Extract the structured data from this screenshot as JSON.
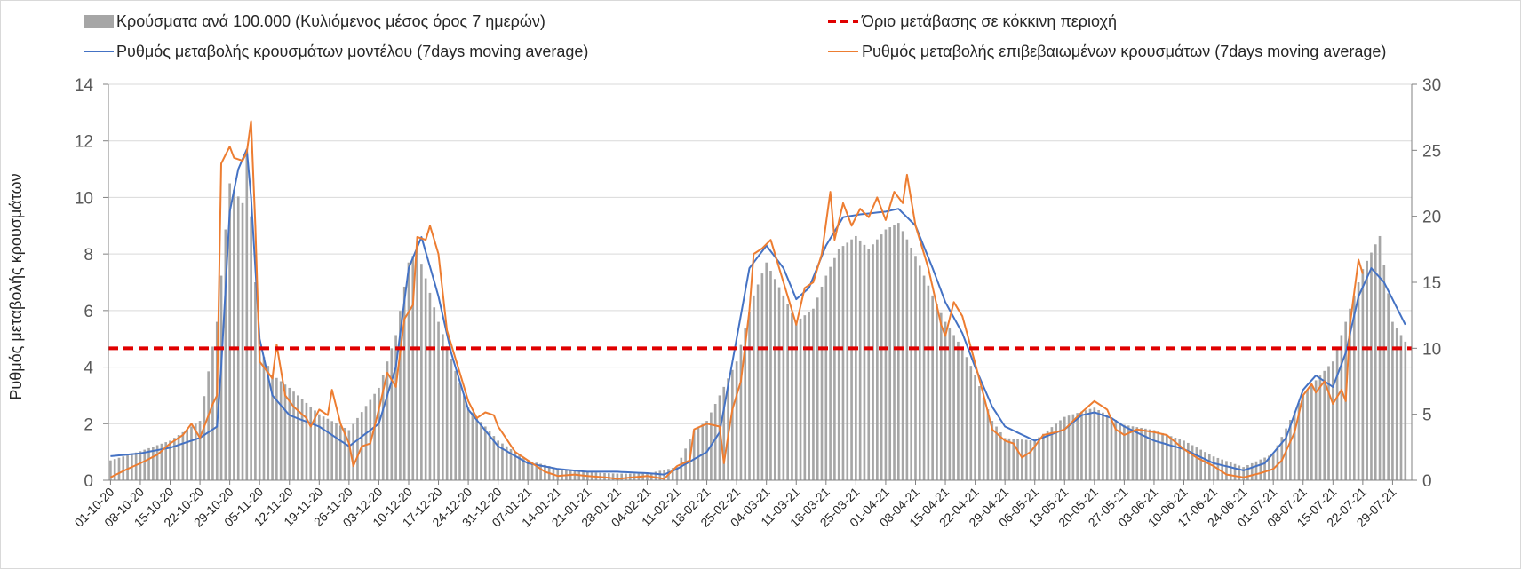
{
  "chart_data": {
    "type": "bar",
    "ylabel": "Ρυθμός μεταβολής κρουσμάτων",
    "ylim_left": [
      0,
      14
    ],
    "yticks_left": [
      "0",
      "2",
      "4",
      "6",
      "8",
      "10",
      "12",
      "14"
    ],
    "ylim_right": [
      0,
      30
    ],
    "yticks_right": [
      "0",
      "5",
      "10",
      "15",
      "20",
      "25",
      "30"
    ],
    "grid": true,
    "legend_position": "top",
    "x_start": "01-10-20",
    "num_days": 306,
    "xtick_labels": [
      "01-10-20",
      "08-10-20",
      "15-10-20",
      "22-10-20",
      "29-10-20",
      "05-11-20",
      "12-11-20",
      "19-11-20",
      "26-11-20",
      "03-12-20",
      "10-12-20",
      "17-12-20",
      "24-12-20",
      "31-12-20",
      "07-01-21",
      "14-01-21",
      "21-01-21",
      "28-01-21",
      "04-02-21",
      "11-02-21",
      "18-02-21",
      "25-02-21",
      "04-03-21",
      "11-03-21",
      "18-03-21",
      "25-03-21",
      "01-04-21",
      "08-04-21",
      "15-04-21",
      "22-04-21",
      "29-04-21",
      "06-05-21",
      "13-05-21",
      "20-05-21",
      "27-05-21",
      "03-06-21",
      "10-06-21",
      "17-06-21",
      "24-06-21",
      "01-07-21",
      "08-07-21",
      "15-07-21",
      "22-07-21",
      "29-07-21"
    ],
    "threshold": {
      "name": "Όριο μετάβασης σε κόκκινη περιοχή",
      "value": 10,
      "axis": "right",
      "color": "#e00000"
    },
    "series": [
      {
        "name": "Κρούσματα ανά 100.000 (Κυλιόμενος μέσος όρος 7 ημερών)",
        "kind": "bar",
        "axis": "right",
        "color": "#a6a6a6",
        "points": [
          [
            "01-10-20",
            1.5
          ],
          [
            "08-10-20",
            2.2
          ],
          [
            "15-10-20",
            3
          ],
          [
            "22-10-20",
            4.5
          ],
          [
            "26-10-20",
            12
          ],
          [
            "29-10-20",
            22.5
          ],
          [
            "01-11-20",
            21
          ],
          [
            "02-11-20",
            25
          ],
          [
            "05-11-20",
            10
          ],
          [
            "08-11-20",
            8
          ],
          [
            "12-11-20",
            7
          ],
          [
            "19-11-20",
            5
          ],
          [
            "26-11-20",
            3.8
          ],
          [
            "03-12-20",
            7
          ],
          [
            "07-12-20",
            11
          ],
          [
            "10-12-20",
            16.5
          ],
          [
            "12-12-20",
            17.5
          ],
          [
            "17-12-20",
            12
          ],
          [
            "24-12-20",
            5.5
          ],
          [
            "31-12-20",
            3
          ],
          [
            "07-01-21",
            1.5
          ],
          [
            "14-01-21",
            0.9
          ],
          [
            "21-01-21",
            0.6
          ],
          [
            "28-01-21",
            0.5
          ],
          [
            "04-02-21",
            0.5
          ],
          [
            "11-02-21",
            1
          ],
          [
            "15-02-21",
            3.8
          ],
          [
            "18-02-21",
            4.5
          ],
          [
            "25-02-21",
            9
          ],
          [
            "01-03-21",
            14
          ],
          [
            "04-03-21",
            16.5
          ],
          [
            "08-03-21",
            14
          ],
          [
            "11-03-21",
            12
          ],
          [
            "15-03-21",
            13
          ],
          [
            "18-03-21",
            15.5
          ],
          [
            "21-03-21",
            17.5
          ],
          [
            "25-03-21",
            18.5
          ],
          [
            "28-03-21",
            17.5
          ],
          [
            "01-04-21",
            19
          ],
          [
            "04-04-21",
            19.5
          ],
          [
            "08-04-21",
            17
          ],
          [
            "12-04-21",
            14
          ],
          [
            "15-04-21",
            12
          ],
          [
            "19-04-21",
            10
          ],
          [
            "22-04-21",
            8
          ],
          [
            "26-04-21",
            4.5
          ],
          [
            "29-04-21",
            3.2
          ],
          [
            "06-05-21",
            3
          ],
          [
            "13-05-21",
            4.8
          ],
          [
            "20-05-21",
            5.5
          ],
          [
            "27-05-21",
            4.2
          ],
          [
            "03-06-21",
            3.8
          ],
          [
            "10-06-21",
            3
          ],
          [
            "17-06-21",
            1.8
          ],
          [
            "24-06-21",
            1
          ],
          [
            "01-07-21",
            2
          ],
          [
            "08-07-21",
            6.5
          ],
          [
            "15-07-21",
            9
          ],
          [
            "22-07-21",
            16
          ],
          [
            "26-07-21",
            18.5
          ],
          [
            "29-07-21",
            12
          ],
          [
            "01-08-21",
            10.5
          ]
        ]
      },
      {
        "name": "Ρυθμός μεταβολής κρουσμάτων μοντέλου (7days moving average)",
        "kind": "line",
        "axis": "left",
        "color": "#4472c4",
        "points": [
          [
            "01-10-20",
            0.85
          ],
          [
            "08-10-20",
            0.95
          ],
          [
            "15-10-20",
            1.15
          ],
          [
            "22-10-20",
            1.5
          ],
          [
            "26-10-20",
            1.9
          ],
          [
            "27-10-20",
            4
          ],
          [
            "29-10-20",
            9.5
          ],
          [
            "31-10-20",
            11
          ],
          [
            "02-11-20",
            11.7
          ],
          [
            "03-11-20",
            10
          ],
          [
            "05-11-20",
            5
          ],
          [
            "08-11-20",
            3
          ],
          [
            "12-11-20",
            2.3
          ],
          [
            "19-11-20",
            1.9
          ],
          [
            "26-11-20",
            1.2
          ],
          [
            "03-12-20",
            2
          ],
          [
            "07-12-20",
            4
          ],
          [
            "10-12-20",
            7.5
          ],
          [
            "13-12-20",
            8.6
          ],
          [
            "17-12-20",
            6.5
          ],
          [
            "20-12-20",
            4.5
          ],
          [
            "24-12-20",
            2.5
          ],
          [
            "31-12-20",
            1.2
          ],
          [
            "07-01-21",
            0.6
          ],
          [
            "14-01-21",
            0.4
          ],
          [
            "21-01-21",
            0.3
          ],
          [
            "28-01-21",
            0.3
          ],
          [
            "04-02-21",
            0.25
          ],
          [
            "08-02-21",
            0.2
          ],
          [
            "11-02-21",
            0.4
          ],
          [
            "18-02-21",
            1
          ],
          [
            "21-02-21",
            1.7
          ],
          [
            "25-02-21",
            5
          ],
          [
            "28-02-21",
            7.5
          ],
          [
            "04-03-21",
            8.3
          ],
          [
            "08-03-21",
            7.5
          ],
          [
            "11-03-21",
            6.4
          ],
          [
            "14-03-21",
            6.8
          ],
          [
            "18-03-21",
            8.3
          ],
          [
            "22-03-21",
            9.3
          ],
          [
            "26-03-21",
            9.4
          ],
          [
            "01-04-21",
            9.5
          ],
          [
            "04-04-21",
            9.6
          ],
          [
            "08-04-21",
            9
          ],
          [
            "12-04-21",
            7.5
          ],
          [
            "15-04-21",
            6.3
          ],
          [
            "19-04-21",
            5.2
          ],
          [
            "22-04-21",
            4
          ],
          [
            "26-04-21",
            2.6
          ],
          [
            "29-04-21",
            1.9
          ],
          [
            "06-05-21",
            1.4
          ],
          [
            "13-05-21",
            1.8
          ],
          [
            "17-05-21",
            2.3
          ],
          [
            "20-05-21",
            2.4
          ],
          [
            "24-05-21",
            2.2
          ],
          [
            "27-05-21",
            1.9
          ],
          [
            "03-06-21",
            1.4
          ],
          [
            "10-06-21",
            1.1
          ],
          [
            "17-06-21",
            0.6
          ],
          [
            "24-06-21",
            0.35
          ],
          [
            "29-06-21",
            0.6
          ],
          [
            "04-07-21",
            1.5
          ],
          [
            "08-07-21",
            3.2
          ],
          [
            "11-07-21",
            3.7
          ],
          [
            "15-07-21",
            3.3
          ],
          [
            "18-07-21",
            4.5
          ],
          [
            "21-07-21",
            6.5
          ],
          [
            "24-07-21",
            7.5
          ],
          [
            "27-07-21",
            7
          ],
          [
            "01-08-21",
            5.5
          ]
        ]
      },
      {
        "name": "Ρυθμός μεταβολής επιβεβαιωμένων κρουσμάτων (7days moving average)",
        "kind": "line",
        "axis": "left",
        "color": "#ed7d31",
        "points": [
          [
            "01-10-20",
            0.1
          ],
          [
            "05-10-20",
            0.4
          ],
          [
            "08-10-20",
            0.6
          ],
          [
            "12-10-20",
            0.9
          ],
          [
            "15-10-20",
            1.3
          ],
          [
            "18-10-20",
            1.6
          ],
          [
            "20-10-20",
            2
          ],
          [
            "22-10-20",
            1.5
          ],
          [
            "25-10-20",
            2.7
          ],
          [
            "26-10-20",
            3
          ],
          [
            "27-10-20",
            11.2
          ],
          [
            "29-10-20",
            11.8
          ],
          [
            "30-10-20",
            11.4
          ],
          [
            "01-11-20",
            11.3
          ],
          [
            "02-11-20",
            11.6
          ],
          [
            "03-11-20",
            12.7
          ],
          [
            "04-11-20",
            9
          ],
          [
            "05-11-20",
            4.2
          ],
          [
            "08-11-20",
            3.6
          ],
          [
            "09-11-20",
            4.8
          ],
          [
            "11-11-20",
            3
          ],
          [
            "13-11-20",
            2.6
          ],
          [
            "16-11-20",
            2.2
          ],
          [
            "17-11-20",
            1.9
          ],
          [
            "19-11-20",
            2.5
          ],
          [
            "21-11-20",
            2.3
          ],
          [
            "22-11-20",
            3.2
          ],
          [
            "24-11-20",
            2
          ],
          [
            "26-11-20",
            1.3
          ],
          [
            "27-11-20",
            0.5
          ],
          [
            "29-11-20",
            1.2
          ],
          [
            "01-12-20",
            1.3
          ],
          [
            "03-12-20",
            2.5
          ],
          [
            "05-12-20",
            3.8
          ],
          [
            "07-12-20",
            3.3
          ],
          [
            "09-12-20",
            5.7
          ],
          [
            "11-12-20",
            6.2
          ],
          [
            "12-12-20",
            8.6
          ],
          [
            "14-12-20",
            8.5
          ],
          [
            "15-12-20",
            9
          ],
          [
            "17-12-20",
            8
          ],
          [
            "19-12-20",
            5.3
          ],
          [
            "21-12-20",
            4.3
          ],
          [
            "24-12-20",
            2.8
          ],
          [
            "26-12-20",
            2.2
          ],
          [
            "28-12-20",
            2.4
          ],
          [
            "30-12-20",
            2.3
          ],
          [
            "31-12-20",
            1.9
          ],
          [
            "04-01-21",
            1
          ],
          [
            "07-01-21",
            0.7
          ],
          [
            "11-01-21",
            0.3
          ],
          [
            "14-01-21",
            0.15
          ],
          [
            "18-01-21",
            0.2
          ],
          [
            "21-01-21",
            0.15
          ],
          [
            "25-01-21",
            0.1
          ],
          [
            "28-01-21",
            0.05
          ],
          [
            "04-02-21",
            0.15
          ],
          [
            "08-02-21",
            0.05
          ],
          [
            "11-02-21",
            0.5
          ],
          [
            "14-02-21",
            0.7
          ],
          [
            "15-02-21",
            1.8
          ],
          [
            "18-02-21",
            2
          ],
          [
            "21-02-21",
            1.9
          ],
          [
            "22-02-21",
            0.6
          ],
          [
            "24-02-21",
            2.5
          ],
          [
            "26-02-21",
            3.5
          ],
          [
            "28-02-21",
            6
          ],
          [
            "01-03-21",
            8
          ],
          [
            "03-03-21",
            8.2
          ],
          [
            "05-03-21",
            8.5
          ],
          [
            "07-03-21",
            7.5
          ],
          [
            "09-03-21",
            6.5
          ],
          [
            "11-03-21",
            5.5
          ],
          [
            "13-03-21",
            6.8
          ],
          [
            "15-03-21",
            7
          ],
          [
            "17-03-21",
            8
          ],
          [
            "19-03-21",
            10.2
          ],
          [
            "20-03-21",
            8.5
          ],
          [
            "22-03-21",
            9.8
          ],
          [
            "24-03-21",
            9
          ],
          [
            "26-03-21",
            9.6
          ],
          [
            "28-03-21",
            9.3
          ],
          [
            "30-03-21",
            10
          ],
          [
            "01-04-21",
            9.2
          ],
          [
            "03-04-21",
            10.2
          ],
          [
            "05-04-21",
            9.8
          ],
          [
            "06-04-21",
            10.8
          ],
          [
            "08-04-21",
            9
          ],
          [
            "11-04-21",
            7.5
          ],
          [
            "14-04-21",
            5.5
          ],
          [
            "15-04-21",
            5.1
          ],
          [
            "17-04-21",
            6.3
          ],
          [
            "19-04-21",
            5.8
          ],
          [
            "21-04-21",
            4.7
          ],
          [
            "24-04-21",
            3
          ],
          [
            "26-04-21",
            1.8
          ],
          [
            "29-04-21",
            1.4
          ],
          [
            "01-05-21",
            1.3
          ],
          [
            "03-05-21",
            0.8
          ],
          [
            "05-05-21",
            1
          ],
          [
            "08-05-21",
            1.6
          ],
          [
            "11-05-21",
            1.7
          ],
          [
            "13-05-21",
            1.8
          ],
          [
            "17-05-21",
            2.4
          ],
          [
            "20-05-21",
            2.8
          ],
          [
            "23-05-21",
            2.5
          ],
          [
            "25-05-21",
            1.8
          ],
          [
            "27-05-21",
            1.6
          ],
          [
            "30-05-21",
            1.8
          ],
          [
            "03-06-21",
            1.7
          ],
          [
            "06-06-21",
            1.6
          ],
          [
            "10-06-21",
            1.1
          ],
          [
            "13-06-21",
            0.8
          ],
          [
            "17-06-21",
            0.5
          ],
          [
            "20-06-21",
            0.2
          ],
          [
            "24-06-21",
            0.1
          ],
          [
            "28-06-21",
            0.25
          ],
          [
            "01-07-21",
            0.4
          ],
          [
            "03-07-21",
            0.7
          ],
          [
            "06-07-21",
            1.7
          ],
          [
            "08-07-21",
            3
          ],
          [
            "10-07-21",
            3.4
          ],
          [
            "11-07-21",
            3.1
          ],
          [
            "13-07-21",
            3.5
          ],
          [
            "15-07-21",
            2.7
          ],
          [
            "17-07-21",
            3.2
          ],
          [
            "18-07-21",
            2.8
          ],
          [
            "19-07-21",
            5.5
          ],
          [
            "21-07-21",
            7.8
          ],
          [
            "22-07-21",
            7.3
          ]
        ]
      }
    ]
  }
}
